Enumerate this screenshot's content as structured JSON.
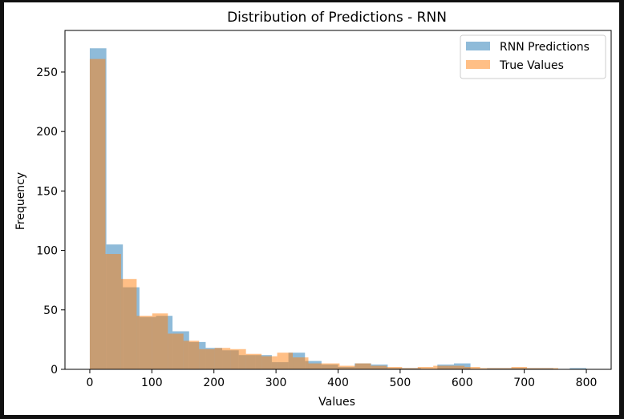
{
  "chart_data": {
    "type": "bar",
    "title": "Distribution of Predictions - RNN",
    "xlabel": "Values",
    "ylabel": "Frequency",
    "xlim": [
      -40,
      840
    ],
    "ylim": [
      0,
      285
    ],
    "xticks": [
      0,
      100,
      200,
      300,
      400,
      500,
      600,
      700,
      800
    ],
    "yticks": [
      0,
      50,
      100,
      150,
      200,
      250
    ],
    "legend_position": "top-right",
    "series": [
      {
        "name": "RNN Predictions",
        "color": "#1f77b4",
        "opacity": 0.5,
        "bin_edges": [
          0,
          26.7,
          53.3,
          80,
          106.7,
          133.3,
          160,
          186.7,
          213.3,
          240,
          266.7,
          293.3,
          320,
          346.7,
          373.3,
          400,
          426.7,
          453.3,
          480,
          506.7,
          533.3,
          560,
          586.7,
          613.3,
          640,
          666.7,
          693.3,
          720,
          746.7,
          773.3,
          800
        ],
        "counts": [
          270,
          105,
          69,
          44,
          45,
          32,
          23,
          18,
          16,
          12,
          12,
          6,
          14,
          7,
          4,
          2,
          5,
          4,
          1,
          1,
          0,
          4,
          5,
          0,
          1,
          1,
          1,
          1,
          0,
          1
        ]
      },
      {
        "name": "True Values",
        "color": "#ff7f0e",
        "opacity": 0.5,
        "bin_edges": [
          0,
          25.2,
          50.3,
          75.5,
          100.6,
          125.8,
          150.9,
          176.1,
          201.2,
          226.4,
          251.6,
          276.7,
          301.9,
          327.0,
          352.2,
          377.3,
          402.5,
          427.6,
          452.8,
          478.0,
          503.1,
          528.3,
          553.4,
          578.6,
          603.7,
          628.9,
          654.1,
          679.2,
          704.4,
          729.5,
          754.7
        ],
        "counts": [
          261,
          97,
          76,
          45,
          47,
          30,
          24,
          17,
          18,
          17,
          13,
          11,
          14,
          10,
          5,
          5,
          3,
          5,
          3,
          2,
          1,
          2,
          3,
          3,
          2,
          1,
          1,
          2,
          1,
          1
        ]
      }
    ]
  }
}
